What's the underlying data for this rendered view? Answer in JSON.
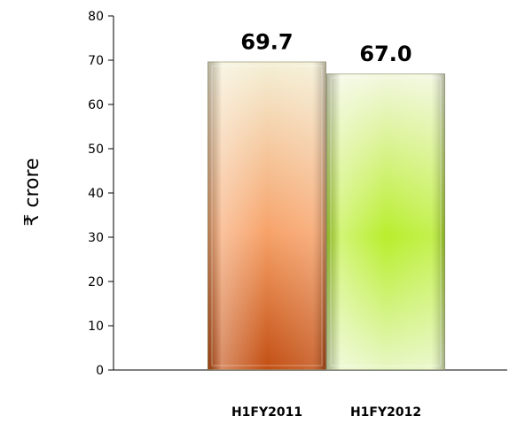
{
  "chart_data": {
    "type": "bar",
    "categories": [
      "H1FY2011",
      "H1FY2012"
    ],
    "values": [
      69.7,
      67.0
    ],
    "data_labels": [
      "69.7",
      "67.0"
    ],
    "title": "",
    "xlabel": "",
    "ylabel": "₹ crore",
    "ylim": [
      0,
      80
    ],
    "yticks": [
      0,
      10,
      20,
      30,
      40,
      50,
      60,
      70,
      80
    ],
    "grid": false,
    "legend": "none",
    "bar_colors": [
      {
        "top": "#f4f0d6",
        "mid": "#f7a36a",
        "bottom": "#c24e12"
      },
      {
        "top": "#f3f7df",
        "mid": "#b9ee2d",
        "bottom": "#e7f7c4"
      }
    ],
    "axis_color": "#000000"
  }
}
